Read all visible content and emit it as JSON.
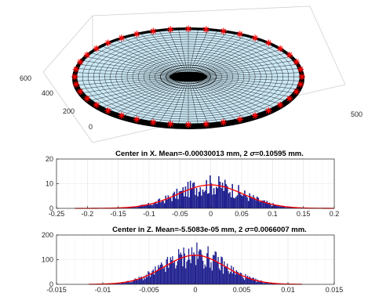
{
  "chart_data": [
    {
      "type": "surface",
      "view": "3d",
      "xticks": [
        "500"
      ],
      "yticks": [
        "0",
        "200",
        "400",
        "600"
      ],
      "surface_fill": "#cbe8f5",
      "mesh_color": "#000000",
      "rim_color": "#000000",
      "marker_color": "#ff0000",
      "marker_symbol": "*"
    },
    {
      "type": "histogram",
      "title_parts": [
        "Center in X. Mean=-0.00030013 mm, 2 ",
        "σ",
        "=0.10595 mm."
      ],
      "xlim": [
        -0.25,
        0.2
      ],
      "ylim": [
        0,
        20
      ],
      "xticks": [
        "-0.25",
        "-0.2",
        "-0.15",
        "-0.1",
        "-0.05",
        "0",
        "0.05",
        "0.1",
        "0.15",
        "0.2"
      ],
      "xtick_values": [
        -0.25,
        -0.2,
        -0.15,
        -0.1,
        -0.05,
        0,
        0.05,
        0.1,
        0.15,
        0.2
      ],
      "yticks": [
        "0",
        "10",
        "20"
      ],
      "ytick_values": [
        0,
        10,
        20
      ],
      "distribution": {
        "mean": -0.0003,
        "sigma": 0.053,
        "peak": 9.5,
        "support": [
          -0.22,
          0.2
        ]
      },
      "bar_color": "#1f1f8f",
      "fit_color": "#ff0000",
      "grid": true
    },
    {
      "type": "histogram",
      "title_parts": [
        "Center in Z. Mean=-5.5083e-05 mm, 2 ",
        "σ",
        "=0.0066007 mm."
      ],
      "xlim": [
        -0.015,
        0.015
      ],
      "ylim": [
        0,
        200
      ],
      "xticks": [
        "-0.015",
        "-0.01",
        "-0.005",
        "0",
        "0.005",
        "0.01",
        "0.015"
      ],
      "xtick_values": [
        -0.015,
        -0.01,
        -0.005,
        0,
        0.005,
        0.01,
        0.015
      ],
      "yticks": [
        "0",
        "100",
        "200"
      ],
      "ytick_values": [
        0,
        100,
        200
      ],
      "distribution": {
        "mean": -5.5e-05,
        "sigma": 0.0033,
        "peak": 118,
        "support": [
          -0.0115,
          0.0115
        ]
      },
      "bar_color": "#1f1f8f",
      "fit_color": "#ff0000",
      "grid": true
    }
  ]
}
